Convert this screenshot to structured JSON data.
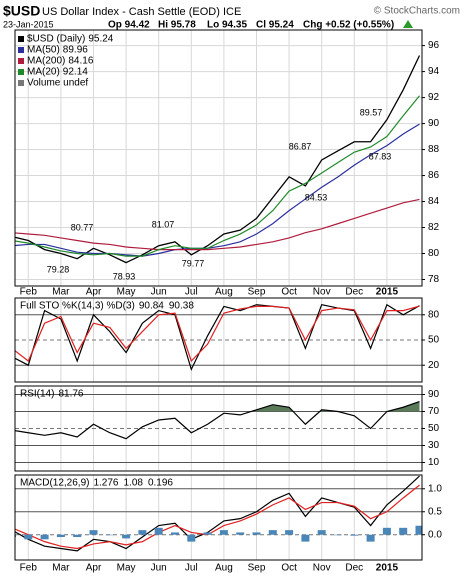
{
  "header": {
    "symbol": "$USD",
    "name": "US Dollar Index - Cash Settle (EOD) ICE",
    "watermark": "© StockCharts.com",
    "date": "23-Jan-2015",
    "quote": [
      "Op 94.42",
      "Hi 95.78",
      "Lo 94.35",
      "Cl 95.24",
      "Chg +0.52 (+0.55%)"
    ]
  },
  "chart_data": [
    {
      "type": "line",
      "categories": [
        null,
        "Feb",
        null,
        "Mar",
        null,
        "Apr",
        null,
        "May",
        null,
        "Jun",
        null,
        "Jul",
        null,
        "Aug",
        null,
        "Sep",
        null,
        "Oct",
        null,
        "Nov",
        null,
        "Dec",
        null,
        "2015",
        null,
        null
      ],
      "series": [
        {
          "name": "$USD (Daily)",
          "color": "#000000",
          "values": [
            81.3,
            81.0,
            80.3,
            80.0,
            79.6,
            80.4,
            79.9,
            79.3,
            79.9,
            80.6,
            80.9,
            79.9,
            80.6,
            81.5,
            81.8,
            82.7,
            84.3,
            85.9,
            85.2,
            87.2,
            87.9,
            88.6,
            88.6,
            90.3,
            92.6,
            95.24
          ]
        },
        {
          "name": "MA(50)",
          "color": "#2b2f9e",
          "values": [
            80.6,
            80.7,
            80.7,
            80.4,
            80.1,
            80.0,
            80.0,
            79.9,
            79.8,
            80.0,
            80.3,
            80.4,
            80.4,
            80.6,
            80.9,
            81.5,
            82.3,
            83.3,
            84.2,
            85.1,
            85.9,
            86.8,
            87.6,
            88.3,
            89.2,
            89.96
          ]
        },
        {
          "name": "MA(200)",
          "color": "#b01c3c",
          "values": [
            81.6,
            81.5,
            81.4,
            81.2,
            81.0,
            80.8,
            80.7,
            80.5,
            80.4,
            80.3,
            80.3,
            80.3,
            80.3,
            80.4,
            80.5,
            80.7,
            80.9,
            81.2,
            81.6,
            81.9,
            82.3,
            82.7,
            83.1,
            83.5,
            83.9,
            84.16
          ]
        },
        {
          "name": "MA(20)",
          "color": "#1f8a2a",
          "values": [
            81.0,
            80.8,
            80.5,
            80.2,
            80.0,
            79.9,
            80.0,
            79.8,
            79.8,
            80.3,
            80.6,
            80.4,
            80.4,
            81.0,
            81.5,
            82.2,
            83.3,
            84.8,
            85.4,
            86.2,
            87.0,
            87.8,
            88.2,
            89.0,
            90.6,
            92.14
          ]
        }
      ],
      "legend_extra": "Volume undef",
      "price_labels": [
        80.77,
        79.28,
        78.93,
        81.07,
        79.77,
        86.87,
        84.53,
        89.57,
        87.83
      ],
      "ylim": [
        77.5,
        97.2
      ],
      "yticks": [
        78,
        80,
        82,
        84,
        86,
        88,
        90,
        92,
        94,
        96
      ],
      "grid": true
    },
    {
      "type": "line",
      "title": "Full STO %K(14,3) %D(3)",
      "series": [
        {
          "color": "#000000",
          "values": [
            30,
            20,
            85,
            75,
            25,
            80,
            60,
            35,
            70,
            85,
            80,
            15,
            55,
            90,
            85,
            92,
            90,
            88,
            40,
            92,
            88,
            85,
            40,
            92,
            80,
            90.84
          ]
        },
        {
          "color": "#e02020",
          "values": [
            40,
            25,
            70,
            78,
            35,
            70,
            65,
            40,
            60,
            80,
            82,
            25,
            45,
            82,
            87,
            90,
            90,
            88,
            50,
            85,
            88,
            86,
            50,
            85,
            85,
            90.38
          ]
        }
      ],
      "ylim": [
        0,
        100
      ],
      "yticks": [
        80,
        50,
        20
      ],
      "grid": true
    },
    {
      "type": "line",
      "title": "RSI(14)",
      "series": [
        {
          "color": "#000000",
          "fill_above": 70,
          "fill_color": "#5a7a5a",
          "values": [
            48,
            45,
            42,
            45,
            40,
            55,
            45,
            38,
            52,
            60,
            62,
            45,
            55,
            68,
            66,
            72,
            78,
            75,
            55,
            72,
            70,
            65,
            50,
            70,
            75,
            81.76
          ]
        }
      ],
      "ylim": [
        0,
        100
      ],
      "yticks": [
        90,
        70,
        50,
        30,
        10
      ],
      "grid": true
    },
    {
      "type": "line",
      "title": "MACD(12,26,9)",
      "series": [
        {
          "color": "#000000",
          "values": [
            0.1,
            -0.1,
            -0.25,
            -0.3,
            -0.35,
            -0.1,
            -0.15,
            -0.3,
            -0.05,
            0.2,
            0.25,
            -0.1,
            0.05,
            0.3,
            0.35,
            0.5,
            0.75,
            0.9,
            0.4,
            0.8,
            0.7,
            0.6,
            0.2,
            0.65,
            0.95,
            1.276
          ]
        },
        {
          "color": "#e02020",
          "values": [
            0.15,
            0.0,
            -0.15,
            -0.25,
            -0.3,
            -0.2,
            -0.15,
            -0.22,
            -0.15,
            0.05,
            0.2,
            0.05,
            0.0,
            0.2,
            0.3,
            0.45,
            0.65,
            0.8,
            0.55,
            0.7,
            0.7,
            0.62,
            0.35,
            0.5,
            0.8,
            1.08
          ]
        },
        {
          "type": "bar",
          "color": "#4a86b8",
          "values": [
            -0.05,
            -0.1,
            -0.1,
            -0.05,
            -0.05,
            0.1,
            0,
            -0.08,
            0.1,
            0.15,
            0.05,
            -0.15,
            0.05,
            0.1,
            0.05,
            0.05,
            0.1,
            0.1,
            -0.15,
            0.1,
            0,
            -0.02,
            -0.15,
            0.15,
            0.15,
            0.196
          ]
        }
      ],
      "ylim": [
        -0.55,
        1.3
      ],
      "yticks": [
        {
          "value": 1,
          "label": "1.0"
        },
        0.5,
        {
          "value": 0,
          "label": "0.0"
        }
      ],
      "grid": true
    }
  ]
}
